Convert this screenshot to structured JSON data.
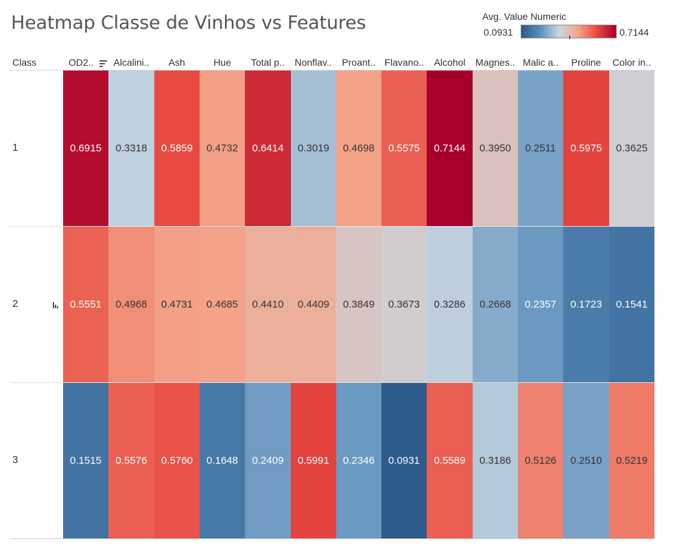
{
  "title": "Heatmap Classe de Vinhos vs Features",
  "legend": {
    "title": "Avg. Value Numeric",
    "min_label": "0.0931",
    "max_label": "0.7144",
    "min": 0.0931,
    "max": 0.7144,
    "colors": [
      "#2c5a8a",
      "#5b8fbd",
      "#c8d6e1",
      "#f4a58a",
      "#e8473f",
      "#a8002d"
    ]
  },
  "row_header": "Class",
  "chart_data": {
    "type": "heatmap",
    "title": "Heatmap Classe de Vinhos vs Features",
    "xlabel": "",
    "ylabel": "Class",
    "columns": [
      "OD2..",
      "Alcalini..",
      "Ash",
      "Hue",
      "Total p..",
      "Nonflav..",
      "Proant..",
      "Flavano..",
      "Alcohol",
      "Magnes..",
      "Malic a..",
      "Proline",
      "Color in.."
    ],
    "rows": [
      "1",
      "2",
      "3"
    ],
    "values": [
      [
        0.6915,
        0.3318,
        0.5859,
        0.4732,
        0.6414,
        0.3019,
        0.4698,
        0.5575,
        0.7144,
        0.395,
        0.2511,
        0.5975,
        0.3625
      ],
      [
        0.5551,
        0.4968,
        0.4731,
        0.4685,
        0.441,
        0.4409,
        0.3849,
        0.3673,
        0.3286,
        0.2668,
        0.2357,
        0.1723,
        0.1541
      ],
      [
        0.1515,
        0.5576,
        0.576,
        0.1648,
        0.2409,
        0.5991,
        0.2346,
        0.0931,
        0.5589,
        0.3186,
        0.5126,
        0.251,
        0.5219
      ]
    ],
    "color_range": [
      0.0931,
      0.7144
    ],
    "sorted_by": "OD2..",
    "grid": false,
    "legend_position": "top-right"
  }
}
